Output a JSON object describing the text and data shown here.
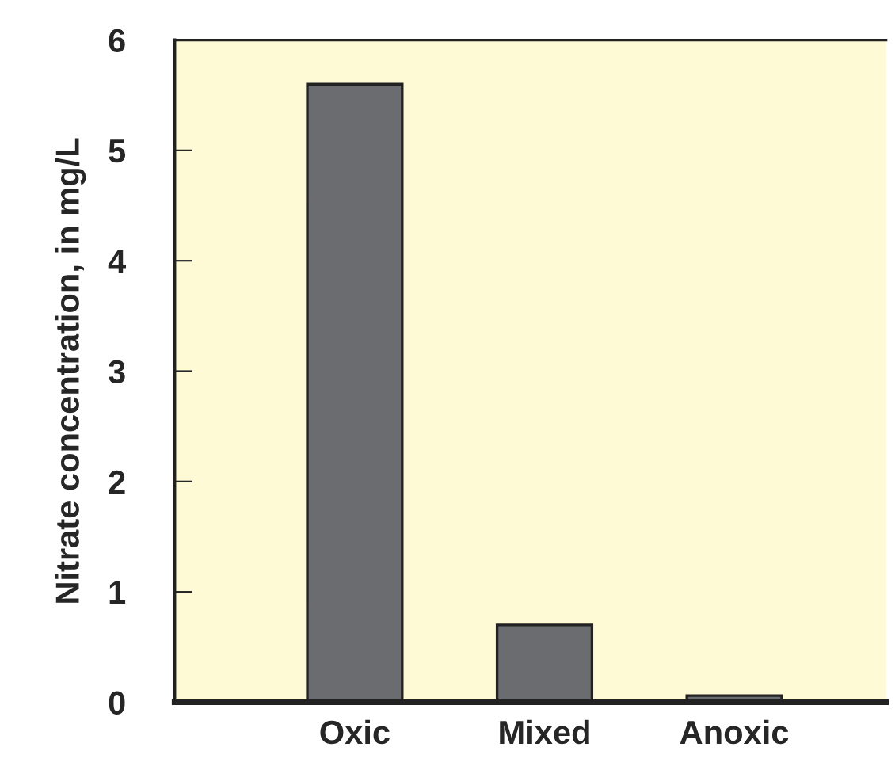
{
  "chart_data": {
    "type": "bar",
    "ylabel": "Nitrate concentration, in mg/L",
    "categories": [
      "Oxic",
      "Mixed",
      "Anoxic"
    ],
    "values": [
      5.6,
      0.7,
      0.06
    ],
    "color": "#6b6c70",
    "ylim": [
      0,
      6
    ],
    "yticks": [
      0,
      1,
      2,
      3,
      4,
      5,
      6
    ],
    "grid": false,
    "legend": false
  }
}
